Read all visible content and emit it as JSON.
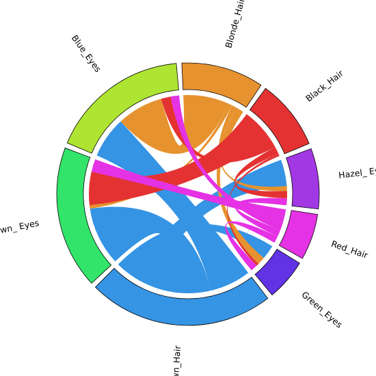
{
  "chart_data": {
    "type": "chord",
    "groups": [
      {
        "id": "blue_eyes",
        "label": "Blue_Eyes",
        "color": "#aee432"
      },
      {
        "id": "blonde_hair",
        "label": "Blonde_Hair",
        "color": "#e6922f"
      },
      {
        "id": "black_hair",
        "label": "Black_Hair",
        "color": "#e43232"
      },
      {
        "id": "hazel_eyes",
        "label": "Hazel_ Eyes",
        "color": "#a237e4"
      },
      {
        "id": "red_hair",
        "label": "Red_Hair",
        "color": "#e432e4"
      },
      {
        "id": "green_eyes",
        "label": "Green_Eyes",
        "color": "#6233e4"
      },
      {
        "id": "brown_hair",
        "label": "Brown_Hair",
        "color": "#3594e4"
      },
      {
        "id": "brown_eyes",
        "label": "Brown_ Eyes",
        "color": "#32e46a"
      }
    ],
    "links": [
      {
        "source": "brown_hair",
        "target": "blue_eyes",
        "value": 84,
        "color": "#3594e4"
      },
      {
        "source": "brown_hair",
        "target": "brown_eyes",
        "value": 119,
        "color": "#3594e4"
      },
      {
        "source": "brown_hair",
        "target": "hazel_eyes",
        "value": 54,
        "color": "#3594e4"
      },
      {
        "source": "brown_hair",
        "target": "green_eyes",
        "value": 29,
        "color": "#3594e4"
      },
      {
        "source": "blonde_hair",
        "target": "blue_eyes",
        "value": 94,
        "color": "#e6922f"
      },
      {
        "source": "blonde_hair",
        "target": "brown_eyes",
        "value": 7,
        "color": "#e6922f"
      },
      {
        "source": "blonde_hair",
        "target": "hazel_eyes",
        "value": 10,
        "color": "#e6922f"
      },
      {
        "source": "blonde_hair",
        "target": "green_eyes",
        "value": 16,
        "color": "#e6922f"
      },
      {
        "source": "black_hair",
        "target": "brown_eyes",
        "value": 68,
        "color": "#e43232"
      },
      {
        "source": "black_hair",
        "target": "blue_eyes",
        "value": 20,
        "color": "#e43232"
      },
      {
        "source": "black_hair",
        "target": "hazel_eyes",
        "value": 15,
        "color": "#e43232"
      },
      {
        "source": "black_hair",
        "target": "green_eyes",
        "value": 5,
        "color": "#e43232"
      },
      {
        "source": "red_hair",
        "target": "brown_eyes",
        "value": 26,
        "color": "#e432e4"
      },
      {
        "source": "red_hair",
        "target": "blue_eyes",
        "value": 17,
        "color": "#e432e4"
      },
      {
        "source": "red_hair",
        "target": "hazel_eyes",
        "value": 14,
        "color": "#e432e4"
      },
      {
        "source": "red_hair",
        "target": "green_eyes",
        "value": 14,
        "color": "#e432e4"
      }
    ]
  }
}
